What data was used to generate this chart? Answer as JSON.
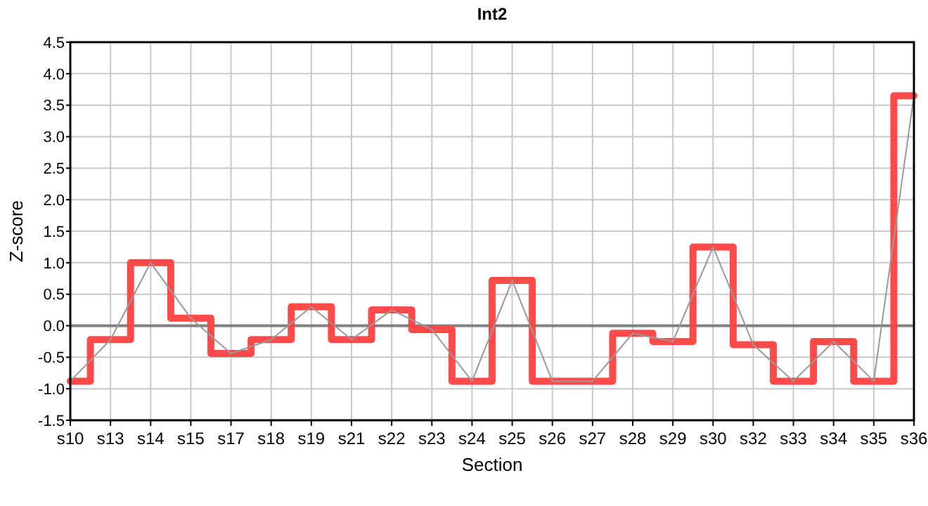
{
  "chart_data": {
    "type": "line",
    "title": "Int2",
    "xlabel": "Section",
    "ylabel": "Z-score",
    "categories": [
      "s10",
      "s13",
      "s14",
      "s15",
      "s17",
      "s18",
      "s19",
      "s21",
      "s22",
      "s23",
      "s24",
      "s25",
      "s26",
      "s27",
      "s28",
      "s29",
      "s30",
      "s32",
      "s33",
      "s34",
      "s35",
      "s36"
    ],
    "series": [
      {
        "type": "step",
        "color": "#ff4040",
        "values": [
          -0.88,
          -0.22,
          1.0,
          0.12,
          -0.44,
          -0.22,
          0.3,
          -0.22,
          0.25,
          -0.06,
          -0.88,
          0.72,
          -0.88,
          -0.88,
          -0.12,
          -0.25,
          1.25,
          -0.3,
          -0.88,
          -0.25,
          -0.88,
          3.65
        ]
      },
      {
        "color": "#999999",
        "values": [
          -0.88,
          -0.22,
          1.0,
          0.12,
          -0.44,
          -0.22,
          0.3,
          -0.22,
          0.25,
          -0.06,
          -0.88,
          0.72,
          -0.88,
          -0.88,
          -0.12,
          -0.25,
          1.25,
          -0.3,
          -0.88,
          -0.25,
          -0.88,
          3.65
        ]
      }
    ],
    "ylim": [
      -1.5,
      4.5
    ],
    "yticks": [
      {
        "value": -1.5,
        "label": "-1.5"
      },
      {
        "value": -1,
        "label": "-1.0"
      },
      {
        "value": -0.5,
        "label": "-0.5"
      },
      {
        "value": 0,
        "label": "0.0"
      },
      {
        "value": 0.5,
        "label": "0.5"
      },
      {
        "value": 1,
        "label": "1.0"
      },
      {
        "value": 1.5,
        "label": "1.5"
      },
      {
        "value": 2,
        "label": "2.0"
      },
      {
        "value": 2.5,
        "label": "2.5"
      },
      {
        "value": 3,
        "label": "3.0"
      },
      {
        "value": 3.5,
        "label": "3.5"
      },
      {
        "value": 4,
        "label": "4.0"
      },
      {
        "value": 4.5,
        "label": "4.5"
      }
    ],
    "ref_lines": [
      {
        "axis": "y",
        "value": 0,
        "color": "#808080"
      }
    ],
    "grid": true,
    "marker": "none"
  }
}
